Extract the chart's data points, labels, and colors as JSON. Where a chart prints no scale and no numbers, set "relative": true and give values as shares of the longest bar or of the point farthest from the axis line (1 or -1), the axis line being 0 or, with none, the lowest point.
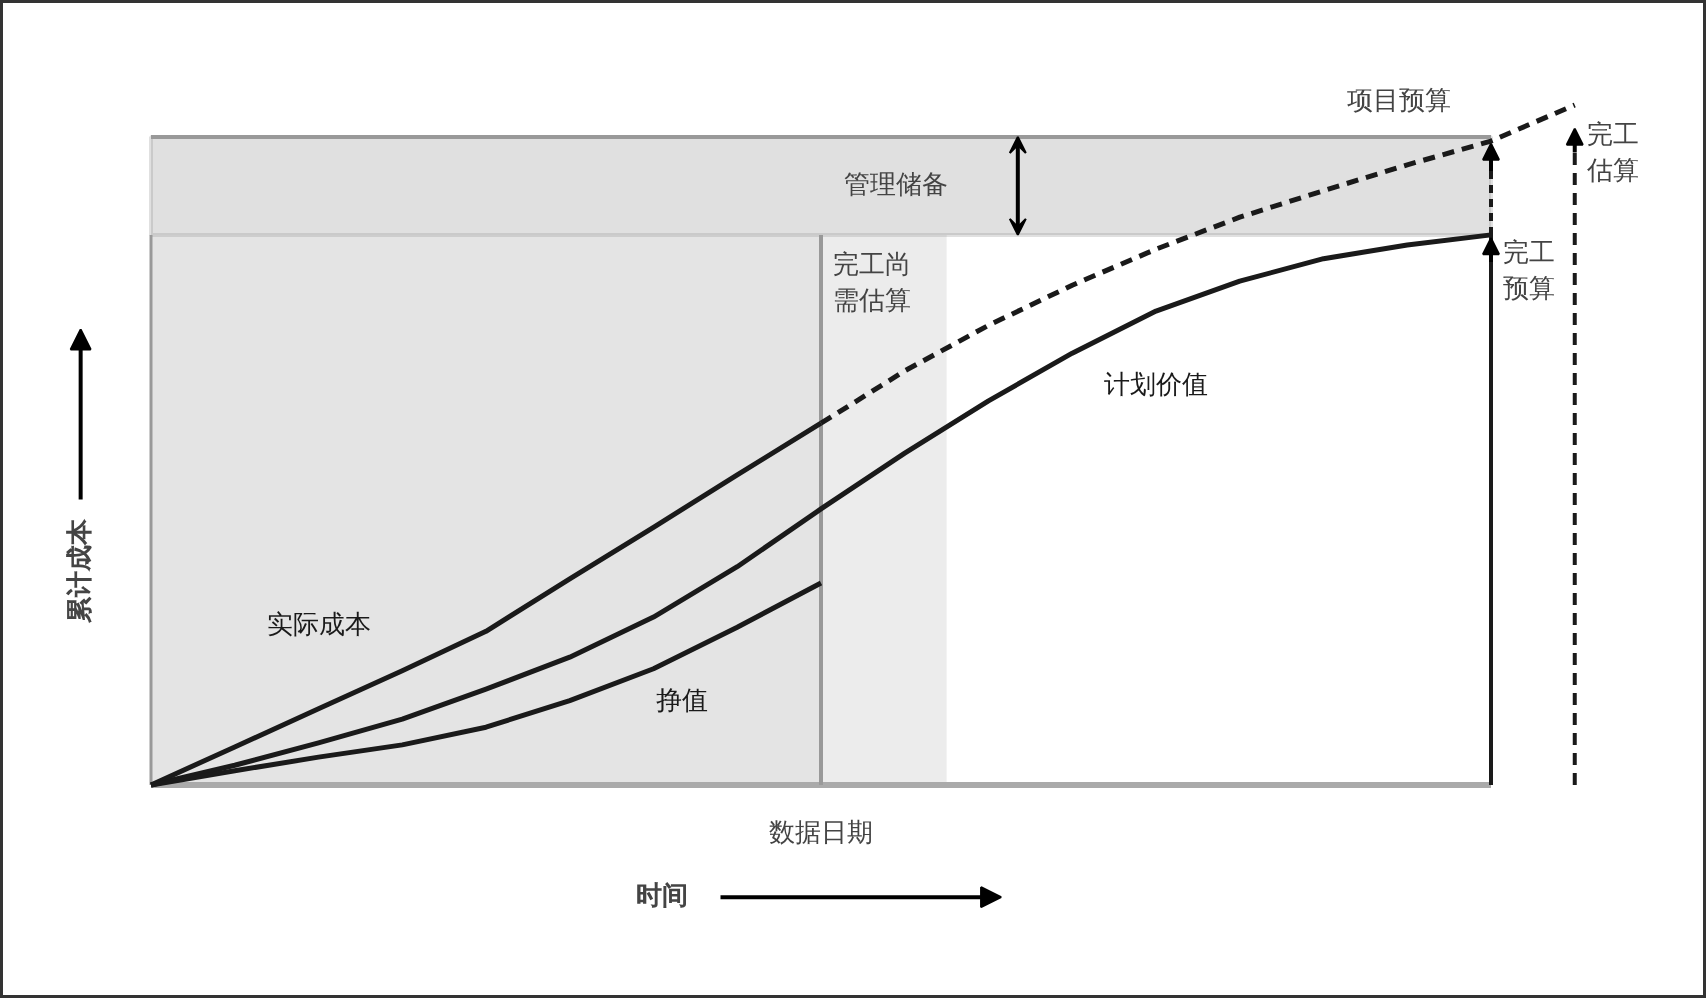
{
  "chart_data": {
    "type": "line",
    "relative": true,
    "xlabel": "时间",
    "ylabel": "累计成本",
    "categories": [
      null,
      null,
      null,
      null,
      null,
      null,
      null,
      null,
      null,
      null,
      null,
      null,
      null,
      null,
      null,
      null,
      null,
      null
    ],
    "series": [
      {
        "name": "计划价值",
        "color": "#1a1a1a",
        "values": [
          0,
          0.029,
          0.062,
          0.097,
          0.141,
          0.188,
          0.247,
          0.321,
          0.406,
          0.488,
          0.565,
          0.635,
          0.697,
          0.741,
          0.774,
          0.794,
          0.809,
          null
        ]
      },
      {
        "name": "实际成本",
        "color": "#1a1a1a",
        "values": [
          0,
          0.056,
          0.112,
          0.168,
          0.226,
          0.303,
          0.379,
          0.456,
          0.532,
          null,
          null,
          null,
          null,
          null,
          null,
          null,
          null,
          null
        ]
      },
      {
        "color": "#1a1a1a",
        "line_style": "dashed",
        "values": [
          null,
          null,
          null,
          null,
          null,
          null,
          null,
          null,
          0.532,
          0.609,
          0.676,
          0.735,
          0.788,
          0.835,
          0.874,
          0.912,
          0.947,
          1.0
        ]
      },
      {
        "name": "挣值",
        "color": "#1a1a1a",
        "values": [
          0,
          0.021,
          0.041,
          0.059,
          0.085,
          0.124,
          0.171,
          0.232,
          0.297,
          null,
          null,
          null,
          null,
          null,
          null,
          null,
          null,
          null
        ]
      }
    ],
    "bands": [
      {
        "axis": "y",
        "from": 0.809,
        "to": 0.953,
        "label": "管理储备",
        "color": "#e0e0e0"
      }
    ],
    "ref_lines": [
      {
        "axis": "y",
        "value": 0.953,
        "label": "项目预算",
        "color": "#999999"
      }
    ],
    "annotations": [
      "数据日期",
      "完工尚需估算",
      "完工预算",
      "完工估算"
    ],
    "grid": false,
    "marker": "none",
    "line_style": "solid"
  }
}
